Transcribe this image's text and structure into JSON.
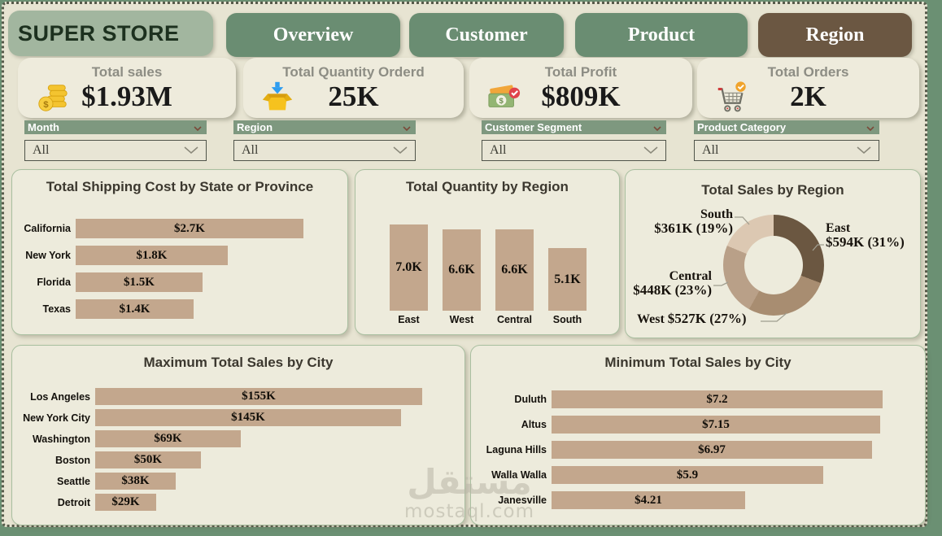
{
  "header": {
    "brand": "SUPER STORE",
    "tabs": [
      {
        "label": "Overview",
        "active": false
      },
      {
        "label": "Customer",
        "active": false
      },
      {
        "label": "Product",
        "active": false
      },
      {
        "label": "Region",
        "active": true
      }
    ]
  },
  "kpis": [
    {
      "title": "Total sales",
      "value": "$1.93M",
      "icon": "coins-icon"
    },
    {
      "title": "Total Quantity Orderd",
      "value": "25K",
      "icon": "box-icon"
    },
    {
      "title": "Total Profit",
      "value": "$809K",
      "icon": "money-icon"
    },
    {
      "title": "Total Orders",
      "value": "2K",
      "icon": "cart-icon"
    }
  ],
  "filters": [
    {
      "label": "Month",
      "value": "All"
    },
    {
      "label": "Region",
      "value": "All"
    },
    {
      "label": "Customer Segment",
      "value": "All"
    },
    {
      "label": "Product Category",
      "value": "All"
    }
  ],
  "colors": {
    "bar": "#c3a78d",
    "tab_green": "#6a8d72",
    "tab_active_brown": "#6b5742",
    "brand_bg": "#a2b69f",
    "filter_header_green": "#7e987f",
    "card_bg": "#edebdc",
    "page_bg": "#e7e4d2",
    "frame_green": "#6b9073"
  },
  "chart_data": [
    {
      "type": "bar",
      "orientation": "horizontal",
      "title": "Total Shipping Cost by State or Province",
      "categories": [
        "California",
        "New York",
        "Florida",
        "Texas"
      ],
      "values": [
        2700,
        1800,
        1500,
        1400
      ],
      "value_labels": [
        "$2.7K",
        "$1.8K",
        "$1.5K",
        "$1.4K"
      ],
      "xlabel": "",
      "ylabel": "",
      "xlim": [
        0,
        2700
      ],
      "grid": false
    },
    {
      "type": "bar",
      "orientation": "vertical",
      "title": "Total Quantity by Region",
      "categories": [
        "East",
        "West",
        "Central",
        "South"
      ],
      "values": [
        7000,
        6600,
        6600,
        5100
      ],
      "value_labels": [
        "7.0K",
        "6.6K",
        "6.6K",
        "5.1K"
      ],
      "xlabel": "",
      "ylabel": "",
      "ylim": [
        0,
        7000
      ],
      "grid": false
    },
    {
      "type": "pie",
      "donut": true,
      "title": "Total Sales by Region",
      "categories": [
        "East",
        "West",
        "Central",
        "South"
      ],
      "values": [
        594,
        527,
        448,
        361
      ],
      "percents": [
        31,
        27,
        23,
        19
      ],
      "value_labels": [
        "$594K (31%)",
        "$527K (27%)",
        "$448K (23%)",
        "$361K (19%)"
      ],
      "colors": [
        "#6b5741",
        "#a88d71",
        "#b9a088",
        "#dcc8b2"
      ],
      "legend_position": "outside-callouts",
      "start_angle_deg": 0,
      "clockwise": true
    },
    {
      "type": "bar",
      "orientation": "horizontal",
      "title": "Maximum Total Sales by City",
      "categories": [
        "Los Angeles",
        "New York City",
        "Washington",
        "Boston",
        "Seattle",
        "Detroit"
      ],
      "values": [
        155,
        145,
        69,
        50,
        38,
        29
      ],
      "value_labels": [
        "$155K",
        "$145K",
        "$69K",
        "$50K",
        "$38K",
        "$29K"
      ],
      "xlabel": "",
      "ylabel": "",
      "xlim": [
        0,
        155
      ],
      "grid": false
    },
    {
      "type": "bar",
      "orientation": "horizontal",
      "title": "Minimum Total Sales by City",
      "categories": [
        "Duluth",
        "Altus",
        "Laguna Hills",
        "Walla Walla",
        "Janesville"
      ],
      "values": [
        7.2,
        7.15,
        6.97,
        5.9,
        4.21
      ],
      "value_labels": [
        "$7.2",
        "$7.15",
        "$6.97",
        "$5.9",
        "$4.21"
      ],
      "xlabel": "",
      "ylabel": "",
      "xlim": [
        0,
        7.2
      ],
      "grid": false
    }
  ],
  "watermark": {
    "line1": "مستقل",
    "line2": "mostaql.com"
  }
}
